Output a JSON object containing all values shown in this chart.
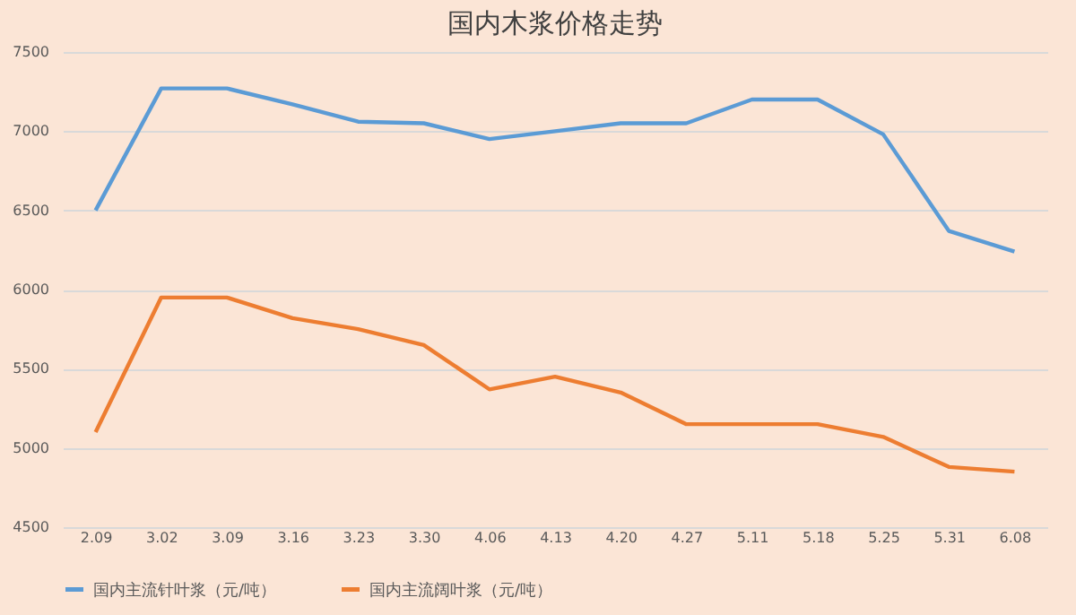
{
  "chart_data": {
    "type": "line",
    "title": "国内木浆价格走势",
    "categories": [
      "2.09",
      "3.02",
      "3.09",
      "3.16",
      "3.23",
      "3.30",
      "4.06",
      "4.13",
      "4.20",
      "4.27",
      "5.11",
      "5.18",
      "5.25",
      "5.31",
      "6.08"
    ],
    "series": [
      {
        "name": "国内主流针叶浆（元/吨）",
        "color": "#5b9bd5",
        "values": [
          6500,
          7270,
          7270,
          7170,
          7060,
          7050,
          6950,
          7000,
          7050,
          7050,
          7200,
          7200,
          6980,
          6370,
          6240
        ]
      },
      {
        "name": "国内主流阔叶浆（元/吨）",
        "color": "#ed7d31",
        "values": [
          5100,
          5950,
          5950,
          5820,
          5750,
          5650,
          5370,
          5450,
          5350,
          5150,
          5150,
          5150,
          5070,
          4880,
          4850
        ]
      }
    ],
    "ylim": [
      4500,
      7500
    ],
    "yticks": [
      4500,
      5000,
      5500,
      6000,
      6500,
      7000,
      7500
    ],
    "grid": "y",
    "legend": "bottom",
    "marker": "none",
    "line_style": "solid"
  }
}
